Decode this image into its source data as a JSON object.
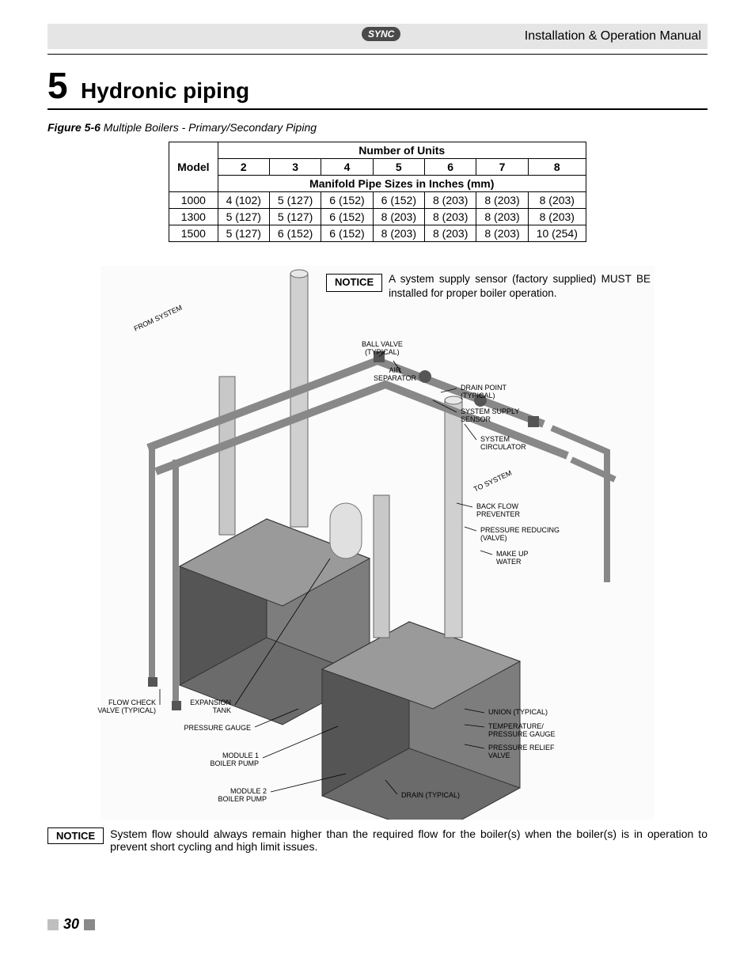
{
  "header": {
    "logo_text": "SYNC",
    "title": "Installation & Operation Manual"
  },
  "section": {
    "number": "5",
    "title": "Hydronic piping"
  },
  "figure_caption": {
    "label": "Figure 5-6",
    "text": "Multiple Boilers - Primary/Secondary Piping"
  },
  "table": {
    "header_units": "Number of Units",
    "header_model": "Model",
    "unit_cols": [
      "2",
      "3",
      "4",
      "5",
      "6",
      "7",
      "8"
    ],
    "header_sizes": "Manifold Pipe Sizes in Inches (mm)",
    "rows": [
      {
        "model": "1000",
        "vals": [
          "4 (102)",
          "5 (127)",
          "6 (152)",
          "6 (152)",
          "8 (203)",
          "8 (203)",
          "8 (203)"
        ]
      },
      {
        "model": "1300",
        "vals": [
          "5 (127)",
          "5 (127)",
          "6 (152)",
          "8 (203)",
          "8 (203)",
          "8 (203)",
          "8 (203)"
        ]
      },
      {
        "model": "1500",
        "vals": [
          "5 (127)",
          "6 (152)",
          "6 (152)",
          "8 (203)",
          "8 (203)",
          "8 (203)",
          "10 (254)"
        ]
      }
    ]
  },
  "diagram": {
    "notice_label": "NOTICE",
    "notice_upper_text": "A system supply sensor (factory supplied) MUST BE installed for proper boiler operation.",
    "labels": {
      "from_system": "FROM SYSTEM",
      "to_system": "TO SYSTEM",
      "ball_valve": "BALL VALVE\n(TYPICAL)",
      "air_separator": "AIR\nSEPARATOR",
      "drain_point": "DRAIN POINT\n(TYPICAL)",
      "system_supply_sensor": "SYSTEM SUPPLY\nSENSOR",
      "system_circulator": "SYSTEM\nCIRCULATOR",
      "back_flow": "BACK FLOW\nPREVENTER",
      "pressure_reducing": "PRESSURE REDUCING\n(VALVE)",
      "make_up_water": "MAKE UP\nWATER",
      "union": "UNION (TYPICAL)",
      "temp_pressure": "TEMPERATURE/\nPRESSURE GAUGE",
      "pressure_relief": "PRESSURE RELIEF\nVALVE",
      "drain": "DRAIN (TYPICAL)",
      "flow_check": "FLOW CHECK\nVALVE (TYPICAL)",
      "expansion_tank": "EXPANSION\nTANK",
      "pressure_gauge": "PRESSURE GAUGE",
      "module1": "MODULE 1\nBOILER PUMP",
      "module2": "MODULE 2\nBOILER PUMP"
    },
    "colors": {
      "boiler_body": "#6b6b6b",
      "boiler_dark": "#4a4a4a",
      "boiler_light": "#9a9a9a",
      "pipe": "#c8c8c8",
      "pipe_dark": "#888888",
      "tank": "#d8d8d8",
      "line": "#000000"
    }
  },
  "notice_lower": {
    "label": "NOTICE",
    "text": "System flow should always remain higher than the required flow for the boiler(s) when the boiler(s) is in operation to prevent short cycling and high limit issues."
  },
  "page_number": "30"
}
